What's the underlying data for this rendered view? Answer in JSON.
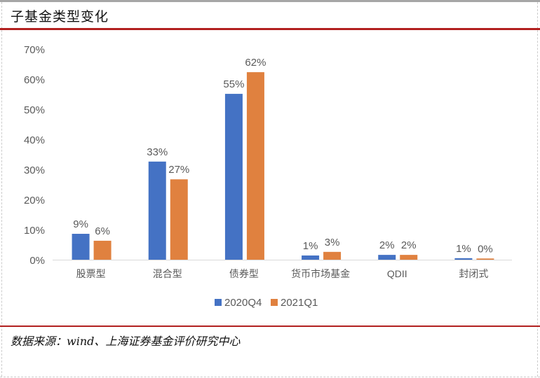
{
  "title": "子基金类型变化",
  "source": "数据来源：wind、上海证券基金评价研究中心",
  "chart_data": {
    "type": "bar",
    "categories": [
      "股票型",
      "混合型",
      "债券型",
      "货币市场基金",
      "QDII",
      "封闭式"
    ],
    "series": [
      {
        "name": "2020Q4",
        "color": "#4472c4",
        "values": [
          8.6,
          32.6,
          55.1,
          1.4,
          1.6,
          0.5
        ],
        "labels": [
          "9%",
          "33%",
          "55%",
          "1%",
          "2%",
          "1%"
        ]
      },
      {
        "name": "2021Q1",
        "color": "#e0813f",
        "values": [
          6.3,
          26.7,
          62.3,
          2.6,
          1.6,
          0.4
        ],
        "labels": [
          "6%",
          "27%",
          "62%",
          "3%",
          "2%",
          "0%"
        ]
      }
    ],
    "ylim": [
      0,
      70
    ],
    "yticks": [
      "0%",
      "10%",
      "20%",
      "30%",
      "40%",
      "50%",
      "60%",
      "70%"
    ],
    "grid": false,
    "legend": "bottom"
  }
}
